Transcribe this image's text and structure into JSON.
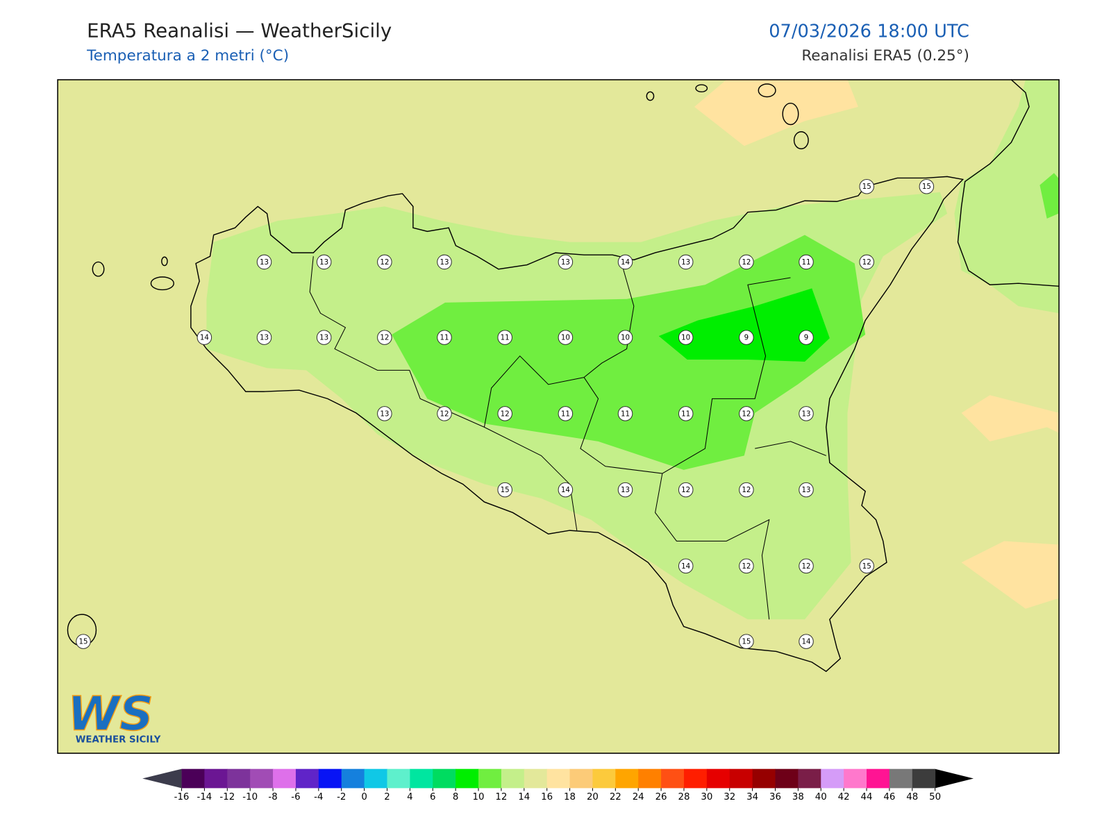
{
  "header": {
    "title": "ERA5 Reanalisi — WeatherSicily",
    "subtitle": "Temperatura a 2 metri (°C)",
    "datetime": "07/03/2026 18:00 UTC",
    "source": "Reanalisi ERA5 (0.25°)"
  },
  "stations": {
    "values": [
      15,
      15,
      13,
      13,
      12,
      13,
      13,
      14,
      13,
      12,
      11,
      12,
      14,
      13,
      13,
      12,
      11,
      11,
      10,
      10,
      10,
      9,
      9,
      13,
      12,
      12,
      11,
      11,
      11,
      12,
      13,
      15,
      14,
      13,
      12,
      12,
      13,
      14,
      12,
      12,
      15,
      15,
      15,
      14
    ]
  },
  "colorbar": {
    "ticks": [
      -16,
      -14,
      -12,
      -10,
      -8,
      -6,
      -4,
      -2,
      0,
      2,
      4,
      6,
      8,
      10,
      12,
      14,
      16,
      18,
      20,
      22,
      24,
      26,
      28,
      30,
      32,
      34,
      36,
      38,
      40,
      42,
      44,
      46,
      48,
      50
    ],
    "colors": [
      "#4b0058",
      "#6b1693",
      "#7d339b",
      "#a14cb5",
      "#de70ea",
      "#6024c8",
      "#0814f5",
      "#1580dd",
      "#10c8e6",
      "#5ef0cc",
      "#00e6a0",
      "#00dc60",
      "#00ee00",
      "#70ee40",
      "#c4ef8a",
      "#e3e89a",
      "#ffe3a0",
      "#fccb78",
      "#fcca3c",
      "#ffa500",
      "#ff8000",
      "#ff5014",
      "#ff1e00",
      "#e60000",
      "#c80000",
      "#960000",
      "#6e0018",
      "#7a1e48",
      "#d59cf8",
      "#ff78cc",
      "#ff1493",
      "#787878",
      "#3c3c3c"
    ],
    "under_color": "#3c3c4c",
    "over_color": "#000000"
  },
  "logo": {
    "letters": "WS",
    "name": "WEATHER SICILY"
  }
}
